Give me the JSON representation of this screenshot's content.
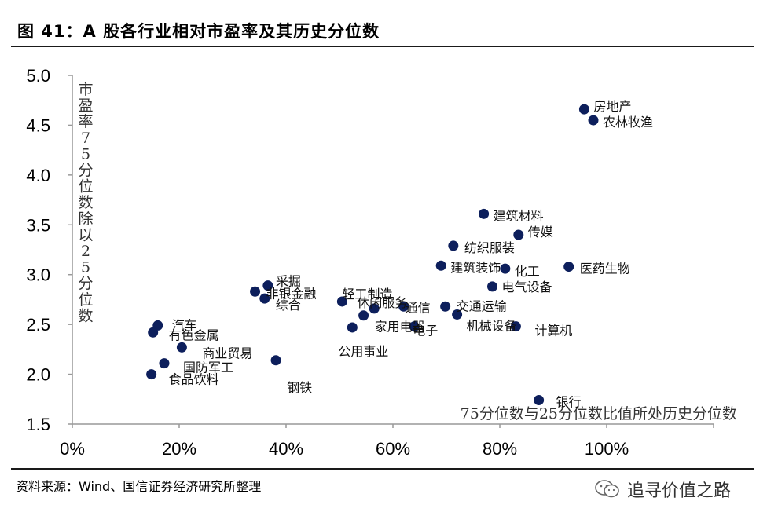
{
  "header": {
    "title": "图 41：A 股各行业相对市盈率及其历史分位数"
  },
  "footer": {
    "source": "资料来源：Wind、国信证券经济研究所整理",
    "watermark": "追寻价值之路"
  },
  "colors": {
    "marker": "#0d1f5c",
    "axis": "#999999",
    "rule": "#1a1a1a"
  },
  "chart_data": {
    "type": "scatter",
    "title": "A 股各行业相对市盈率及其历史分位数",
    "xlabel": "75分位数与25分位数比值所处历史分位数",
    "ylabel": "市盈率75分位数除以25分位数",
    "xlim": [
      0,
      1.2
    ],
    "ylim": [
      1.5,
      5.0
    ],
    "x_ticks": [
      "0%",
      "20%",
      "40%",
      "60%",
      "80%",
      "100%"
    ],
    "y_ticks": [
      "1.5",
      "2.0",
      "2.5",
      "3.0",
      "3.5",
      "4.0",
      "4.5",
      "5.0"
    ],
    "grid": false,
    "points": [
      {
        "label": "房地产",
        "x": 0.958,
        "y": 4.66
      },
      {
        "label": "农林牧渔",
        "x": 0.975,
        "y": 4.55
      },
      {
        "label": "建筑材料",
        "x": 0.77,
        "y": 3.61
      },
      {
        "label": "传媒",
        "x": 0.835,
        "y": 3.4
      },
      {
        "label": "纺织服装",
        "x": 0.713,
        "y": 3.29
      },
      {
        "label": "建筑装饰",
        "x": 0.69,
        "y": 3.09
      },
      {
        "label": "化工",
        "x": 0.81,
        "y": 3.06
      },
      {
        "label": "医药生物",
        "x": 0.929,
        "y": 3.08
      },
      {
        "label": "电气设备",
        "x": 0.786,
        "y": 2.88
      },
      {
        "label": "采掘",
        "x": 0.366,
        "y": 2.89
      },
      {
        "label": "非银金融",
        "x": 0.342,
        "y": 2.83
      },
      {
        "label": "综合",
        "x": 0.36,
        "y": 2.76
      },
      {
        "label": "轻工制造",
        "x": 0.505,
        "y": 2.73
      },
      {
        "label": "休闲服务",
        "x": 0.565,
        "y": 2.66
      },
      {
        "label": "通信",
        "x": 0.62,
        "y": 2.68
      },
      {
        "label": "交通运输",
        "x": 0.698,
        "y": 2.68
      },
      {
        "label": "家用电器",
        "x": 0.545,
        "y": 2.59
      },
      {
        "label": "电子",
        "x": 0.64,
        "y": 2.48
      },
      {
        "label": "机械设备",
        "x": 0.72,
        "y": 2.6
      },
      {
        "label": "计算机",
        "x": 0.83,
        "y": 2.48
      },
      {
        "label": "公用事业",
        "x": 0.524,
        "y": 2.47
      },
      {
        "label": "汽车",
        "x": 0.16,
        "y": 2.49
      },
      {
        "label": "有色金属",
        "x": 0.151,
        "y": 2.42
      },
      {
        "label": "商业贸易",
        "x": 0.205,
        "y": 2.27
      },
      {
        "label": "国防军工",
        "x": 0.172,
        "y": 2.11
      },
      {
        "label": "钢铁",
        "x": 0.381,
        "y": 2.14
      },
      {
        "label": "食品饮料",
        "x": 0.148,
        "y": 2.0
      },
      {
        "label": "银行",
        "x": 0.873,
        "y": 1.74
      }
    ]
  }
}
